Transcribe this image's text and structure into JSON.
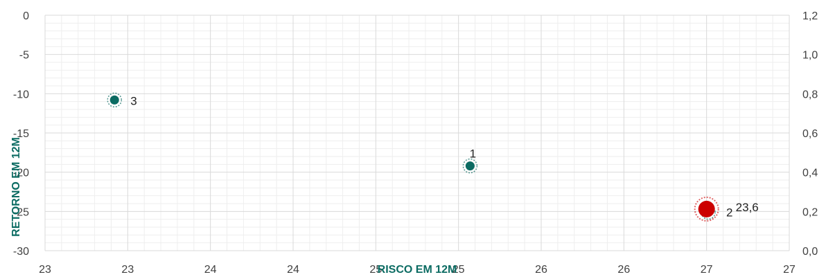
{
  "chart_data": {
    "type": "scatter",
    "xlabel": "RISCO EM 12M",
    "ylabel": "RETORNO EM 12M",
    "xlim": [
      22.75,
      27.25
    ],
    "ylim": [
      -30,
      0
    ],
    "y2lim": [
      0,
      1.2
    ],
    "x_tick_values": [
      22.75,
      23.25,
      23.75,
      24.25,
      24.75,
      25.25,
      25.75,
      26.25,
      26.75,
      27.25
    ],
    "x_tick_labels": [
      "23",
      "23",
      "24",
      "24",
      "25",
      "25",
      "26",
      "26",
      "27",
      "27"
    ],
    "y_tick_labels": [
      "0",
      "-5",
      "-10",
      "-15",
      "-20",
      "-25",
      "-30"
    ],
    "y2_tick_labels": [
      "1,2",
      "1,0",
      "0,8",
      "0,6",
      "0,4",
      "0,2",
      "0,0"
    ],
    "grid": true,
    "series": [
      {
        "points": [
          {
            "x": 23.17,
            "y": -10.8,
            "label": "3"
          },
          {
            "x": 25.32,
            "y": -19.2,
            "label": "1"
          },
          {
            "x": 26.76,
            "y": -25.1,
            "label": "2"
          }
        ]
      },
      {
        "points": [
          {
            "x": 26.75,
            "y": -24.7,
            "label": "23,6"
          }
        ]
      }
    ],
    "colors": {
      "series_fill": "#0b6b62",
      "highlight_fill": "#cc0000",
      "axis_title": "#0b6b62",
      "grid_major": "#d9d9d9",
      "grid_minor": "#eeeeee",
      "tick_text": "#404040"
    }
  }
}
